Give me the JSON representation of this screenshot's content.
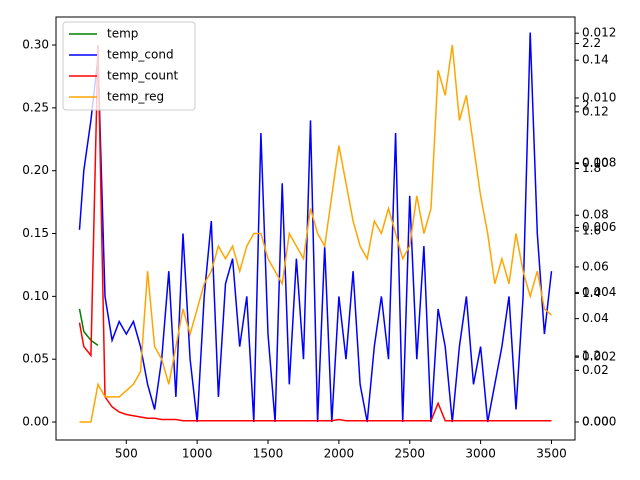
{
  "chart_data": {
    "type": "line",
    "x": [
      170,
      200,
      250,
      300,
      350,
      400,
      450,
      500,
      550,
      600,
      650,
      700,
      750,
      800,
      850,
      900,
      950,
      1000,
      1050,
      1100,
      1150,
      1200,
      1250,
      1300,
      1350,
      1400,
      1450,
      1500,
      1550,
      1600,
      1650,
      1700,
      1750,
      1800,
      1850,
      1900,
      1950,
      2000,
      2050,
      2100,
      2150,
      2200,
      2250,
      2300,
      2350,
      2400,
      2450,
      2500,
      2550,
      2600,
      2650,
      2700,
      2750,
      2800,
      2850,
      2900,
      2950,
      3000,
      3050,
      3100,
      3150,
      3200,
      3250,
      3300,
      3350,
      3400,
      3450,
      3500
    ],
    "series": [
      {
        "name": "temp",
        "color": "#008000",
        "values": [
          0.09,
          0.072,
          0.065,
          0.061,
          null,
          null,
          null,
          null,
          null,
          null,
          null,
          null,
          null,
          null,
          null,
          null,
          null,
          null,
          null,
          null,
          null,
          null,
          null,
          null,
          null,
          null,
          null,
          null,
          null,
          null,
          null,
          null,
          null,
          null,
          null,
          null,
          null,
          null,
          null,
          null,
          null,
          null,
          null,
          null,
          null,
          null,
          null,
          null,
          null,
          null,
          null,
          null,
          null,
          null,
          null,
          null,
          null,
          null,
          null,
          null,
          null,
          null,
          null,
          null,
          null,
          null,
          null,
          null
        ]
      },
      {
        "name": "temp_cond",
        "color": "#0000ff",
        "values": [
          0.153,
          0.2,
          0.24,
          0.29,
          0.1,
          0.065,
          0.08,
          0.07,
          0.08,
          0.06,
          0.03,
          0.01,
          0.05,
          0.12,
          0.02,
          0.15,
          0.05,
          0.0,
          0.1,
          0.16,
          0.02,
          0.11,
          0.13,
          0.06,
          0.1,
          0.0,
          0.23,
          0.07,
          0.0,
          0.19,
          0.03,
          0.13,
          0.05,
          0.24,
          0.0,
          0.14,
          0.0,
          0.1,
          0.05,
          0.12,
          0.03,
          0.0,
          0.06,
          0.1,
          0.05,
          0.23,
          0.0,
          0.18,
          0.05,
          0.14,
          0.0,
          0.09,
          0.06,
          0.0,
          0.06,
          0.1,
          0.03,
          0.06,
          0.0,
          0.03,
          0.06,
          0.1,
          0.01,
          0.1,
          0.31,
          0.15,
          0.07,
          0.12
        ]
      },
      {
        "name": "temp_count",
        "color": "#ff0000",
        "values": [
          0.079,
          0.06,
          0.053,
          0.3,
          0.02,
          0.012,
          0.008,
          0.006,
          0.005,
          0.004,
          0.003,
          0.003,
          0.002,
          0.002,
          0.002,
          0.001,
          0.001,
          0.001,
          0.001,
          0.001,
          0.001,
          0.001,
          0.001,
          0.001,
          0.001,
          0.001,
          0.001,
          0.001,
          0.001,
          0.001,
          0.001,
          0.001,
          0.001,
          0.001,
          0.001,
          0.001,
          0.001,
          0.002,
          0.001,
          0.001,
          0.001,
          0.001,
          0.001,
          0.001,
          0.001,
          0.001,
          0.001,
          0.001,
          0.001,
          0.001,
          0.001,
          0.015,
          0.001,
          0.001,
          0.001,
          0.001,
          0.001,
          0.001,
          0.001,
          0.001,
          0.001,
          0.001,
          0.001,
          0.001,
          0.001,
          0.001,
          0.001,
          0.001
        ]
      },
      {
        "name": "temp_reg",
        "color": "#ffa500",
        "values": [
          0,
          0,
          0,
          0.03,
          0.02,
          0.02,
          0.02,
          0.025,
          0.03,
          0.04,
          0.12,
          0.06,
          0.05,
          0.03,
          0.06,
          0.09,
          0.07,
          0.09,
          0.11,
          0.12,
          0.14,
          0.13,
          0.14,
          0.12,
          0.14,
          0.15,
          0.15,
          0.13,
          0.12,
          0.11,
          0.15,
          0.14,
          0.13,
          0.17,
          0.15,
          0.14,
          0.18,
          0.22,
          0.19,
          0.16,
          0.14,
          0.13,
          0.16,
          0.15,
          0.17,
          0.15,
          0.13,
          0.14,
          0.18,
          0.15,
          0.17,
          0.28,
          0.26,
          0.3,
          0.24,
          0.26,
          0.22,
          0.18,
          0.15,
          0.11,
          0.13,
          0.11,
          0.15,
          0.12,
          0.1,
          0.12,
          0.09,
          0.085
        ]
      }
    ],
    "xlim": [
      4,
      3666
    ],
    "xticks": [
      500,
      1000,
      1500,
      2000,
      2500,
      3000,
      3500
    ],
    "ylim": [
      -0.0143,
      0.3223
    ],
    "yticks": [
      {
        "value": 0,
        "label": "0.00"
      },
      {
        "value": 0.05,
        "label": "0.05"
      },
      {
        "value": 0.1,
        "label": "0.10"
      },
      {
        "value": 0.15,
        "label": "0.15"
      },
      {
        "value": 0.2,
        "label": "0.20"
      },
      {
        "value": 0.25,
        "label": "0.25"
      },
      {
        "value": 0.3,
        "label": "0.30"
      }
    ],
    "right_axes": [
      {
        "lim": [
          -0.000556,
          0.0125
        ],
        "ticks": [
          {
            "value": 0,
            "label": "0.000"
          },
          {
            "value": 0.002,
            "label": "0.002"
          },
          {
            "value": 0.004,
            "label": "0.004"
          },
          {
            "value": 0.006,
            "label": "0.006"
          },
          {
            "value": 0.008,
            "label": "0.008"
          },
          {
            "value": 0.01,
            "label": "0.010"
          },
          {
            "value": 0.012,
            "label": "0.012"
          }
        ]
      },
      {
        "lim": [
          -0.00696,
          0.1567
        ],
        "ticks": [
          {
            "value": 0,
            "label": "0.00"
          },
          {
            "value": 0.02,
            "label": "0.02"
          },
          {
            "value": 0.04,
            "label": "0.04"
          },
          {
            "value": 0.06,
            "label": "0.06"
          },
          {
            "value": 0.08,
            "label": "0.08"
          },
          {
            "value": 0.1,
            "label": "0.10"
          },
          {
            "value": 0.12,
            "label": "0.12"
          },
          {
            "value": 0.14,
            "label": "0.14"
          }
        ]
      },
      {
        "lim": [
          0.931,
          2.285
        ],
        "ticks": [
          1.2,
          1.4,
          1.6,
          1.8,
          2.0,
          2.2
        ]
      }
    ],
    "legend": "upper left"
  }
}
